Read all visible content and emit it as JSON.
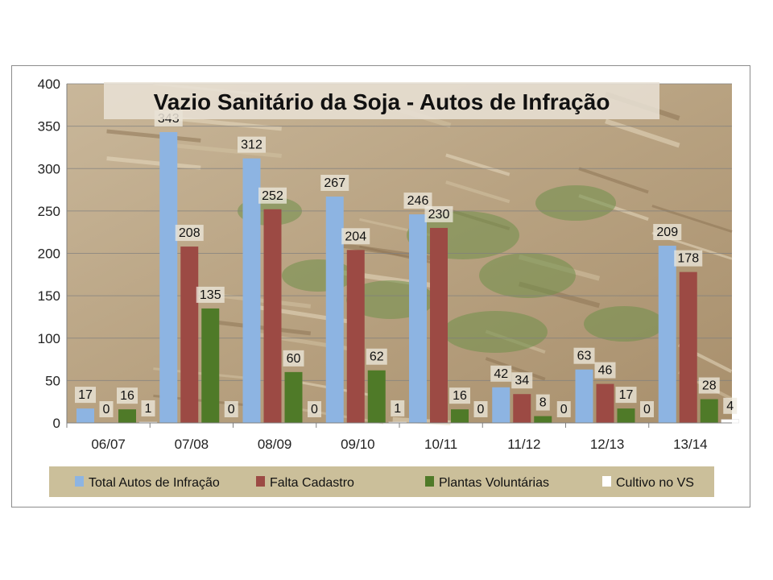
{
  "chart_data": {
    "type": "bar",
    "title": "Vazio Sanitário da Soja - Autos de Infração",
    "xlabel": "",
    "ylabel": "",
    "ylim": [
      0,
      400
    ],
    "yticks": [
      "0",
      "50",
      "100",
      "150",
      "200",
      "250",
      "300",
      "350",
      "400"
    ],
    "categories": [
      "06/07",
      "07/08",
      "08/09",
      "09/10",
      "10/11",
      "11/12",
      "12/13",
      "13/14"
    ],
    "series": [
      {
        "name": "Total Autos de Infração",
        "color": "#8db4e2",
        "values": [
          17,
          343,
          312,
          267,
          246,
          42,
          63,
          209
        ]
      },
      {
        "name": "Falta Cadastro",
        "color": "#9c4a44",
        "values": [
          0,
          208,
          252,
          204,
          230,
          34,
          46,
          178
        ]
      },
      {
        "name": "Plantas Voluntárias",
        "color": "#4f7a28",
        "values": [
          16,
          135,
          60,
          62,
          16,
          8,
          17,
          28
        ]
      },
      {
        "name": "Cultivo no VS",
        "color": "#ffffff",
        "values": [
          1,
          0,
          0,
          1,
          0,
          0,
          0,
          4
        ]
      }
    ],
    "data_labels_shown": true,
    "grid": true,
    "legend_position": "bottom",
    "plot_background": "photo of soybean plants in straw (rendered as stylized backdrop)"
  }
}
